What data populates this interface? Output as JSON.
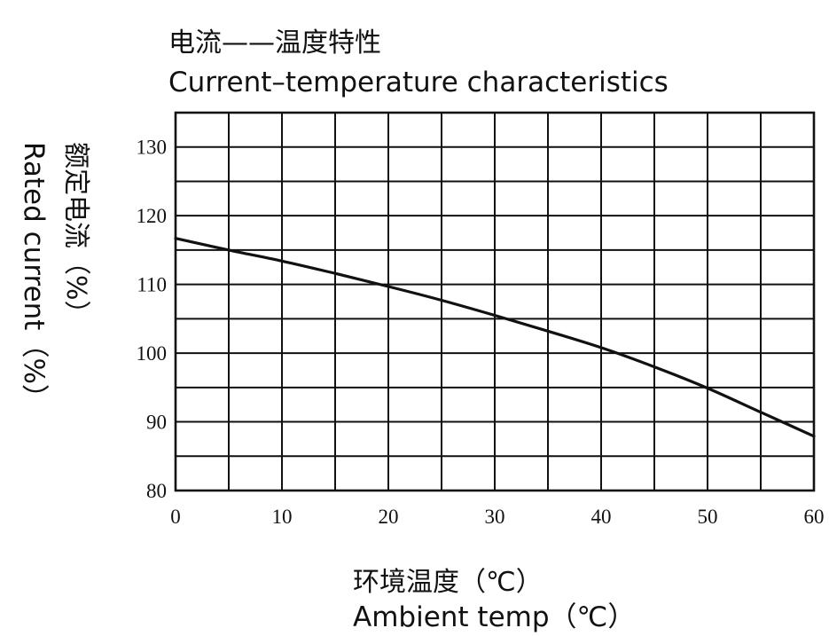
{
  "chart_data": {
    "type": "line",
    "title": "电流——温度特性",
    "subtitle": "Current–temperature characteristics",
    "xlabel_cn": "环境温度（℃）",
    "xlabel_en": "Ambient temp（℃）",
    "ylabel_cn": "额定电流（%）",
    "ylabel_en": "Rated current（%）",
    "xlim": [
      0,
      60
    ],
    "ylim": [
      80,
      135
    ],
    "xticks": [
      0,
      10,
      20,
      30,
      40,
      50,
      60
    ],
    "yticks": [
      80,
      90,
      100,
      110,
      120,
      130
    ],
    "grid": true,
    "x_grid_step": 5,
    "y_grid_step": 5,
    "series": [
      {
        "x": [
          0,
          5,
          10,
          15,
          20,
          25,
          30,
          35,
          40,
          45,
          50,
          55,
          60
        ],
        "values": [
          116.7,
          115.0,
          113.4,
          111.6,
          109.7,
          107.7,
          105.5,
          103.2,
          100.8,
          98.0,
          94.9,
          91.4,
          87.9
        ]
      }
    ]
  }
}
